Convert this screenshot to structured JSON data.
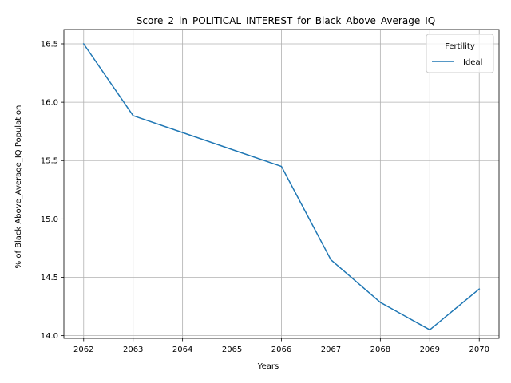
{
  "chart_data": {
    "type": "line",
    "title": "Score_2_in_POLITICAL_INTEREST_for_Black_Above_Average_IQ",
    "xlabel": "Years",
    "ylabel": "% of Black Above_Average_IQ Population",
    "x": [
      2062,
      2063,
      2064,
      2065,
      2066,
      2067,
      2068,
      2069,
      2070
    ],
    "xlim": [
      2061.6,
      2070.4
    ],
    "ylim": [
      13.977,
      16.623
    ],
    "yticks": [
      14.0,
      14.5,
      15.0,
      15.5,
      16.0,
      16.5
    ],
    "ytick_labels": [
      "14.0",
      "14.5",
      "15.0",
      "15.5",
      "16.0",
      "16.5"
    ],
    "grid": true,
    "legend": {
      "title": "Fertility",
      "placement": "top-right"
    },
    "series": [
      {
        "name": "Ideal",
        "color": "#1f77b4",
        "values": [
          16.5,
          15.885,
          15.74,
          15.595,
          15.45,
          14.65,
          14.285,
          14.05,
          14.4
        ]
      }
    ]
  }
}
